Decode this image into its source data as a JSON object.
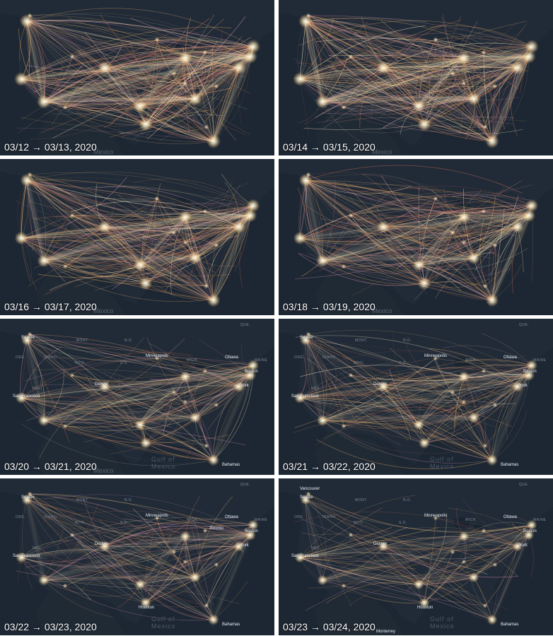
{
  "panels": [
    {
      "caption": "03/12 → 03/13, 2020",
      "density": 1.0,
      "labels": [
        {
          "text": "Mexico",
          "kind": "mex",
          "pos": "gulf-west"
        }
      ]
    },
    {
      "caption": "03/14 → 03/15, 2020",
      "density": 0.95,
      "labels": [
        {
          "text": "Mexico",
          "kind": "mex",
          "pos": "gulf-west"
        }
      ]
    },
    {
      "caption": "03/16 → 03/17, 2020",
      "density": 0.85,
      "labels": [
        {
          "text": "Mexico",
          "kind": "mex",
          "pos": "gulf-west"
        }
      ]
    },
    {
      "caption": "03/18 → 03/19, 2020",
      "density": 0.8,
      "labels": [
        {
          "text": "Mexico",
          "kind": "mex",
          "pos": "gulf-west"
        }
      ]
    },
    {
      "caption": "03/20 → 03/21, 2020",
      "density": 0.55,
      "labels": [
        {
          "text": "Seattle",
          "kind": "city",
          "pos": "seattle"
        },
        {
          "text": "Minneapolis",
          "kind": "city",
          "pos": "minneapolis"
        },
        {
          "text": "Ottawa",
          "kind": "city",
          "pos": "ottawa"
        },
        {
          "text": "Boston",
          "kind": "city",
          "pos": "boston"
        },
        {
          "text": "Denver",
          "kind": "city",
          "pos": "denver"
        },
        {
          "text": "York",
          "kind": "city",
          "pos": "newyork"
        },
        {
          "text": "San Francisco",
          "kind": "city",
          "pos": "sanfrancisco"
        },
        {
          "text": "Bahamas",
          "kind": "city",
          "pos": "bahamas"
        },
        {
          "text": "QUE.",
          "kind": "state",
          "pos": "que"
        },
        {
          "text": "MONT.",
          "kind": "state",
          "pos": "mont"
        },
        {
          "text": "N.D.",
          "kind": "state",
          "pos": "nd"
        },
        {
          "text": "MAINE",
          "kind": "state",
          "pos": "maine"
        },
        {
          "text": "ORE.",
          "kind": "state",
          "pos": "ore"
        },
        {
          "text": "IDAHO",
          "kind": "state",
          "pos": "idaho"
        },
        {
          "text": "WYO.",
          "kind": "state",
          "pos": "wyo"
        },
        {
          "text": "S.D.",
          "kind": "state",
          "pos": "sd"
        },
        {
          "text": "MICH.",
          "kind": "state",
          "pos": "mich"
        },
        {
          "text": "NEV.",
          "kind": "state",
          "pos": "nev"
        },
        {
          "text": "Gulf of",
          "kind": "water",
          "pos": "gulf1"
        },
        {
          "text": "Mexico",
          "kind": "water",
          "pos": "gulf2"
        },
        {
          "text": "Mexico",
          "kind": "mex",
          "pos": "gulf-west"
        }
      ]
    },
    {
      "caption": "03/21 → 03/22, 2020",
      "density": 0.5,
      "labels": [
        {
          "text": "Seattle",
          "kind": "city",
          "pos": "seattle"
        },
        {
          "text": "Minneapolis",
          "kind": "city",
          "pos": "minneapolis"
        },
        {
          "text": "Ottawa",
          "kind": "city",
          "pos": "ottawa"
        },
        {
          "text": "Boston",
          "kind": "city",
          "pos": "boston"
        },
        {
          "text": "Denver",
          "kind": "city",
          "pos": "denver"
        },
        {
          "text": "York",
          "kind": "city",
          "pos": "newyork"
        },
        {
          "text": "San Francisco",
          "kind": "city",
          "pos": "sanfrancisco"
        },
        {
          "text": "Bahamas",
          "kind": "city",
          "pos": "bahamas"
        },
        {
          "text": "QUE.",
          "kind": "state",
          "pos": "que"
        },
        {
          "text": "MONT.",
          "kind": "state",
          "pos": "mont"
        },
        {
          "text": "N.D.",
          "kind": "state",
          "pos": "nd"
        },
        {
          "text": "MAINE",
          "kind": "state",
          "pos": "maine"
        },
        {
          "text": "ORE.",
          "kind": "state",
          "pos": "ore"
        },
        {
          "text": "IDAHO",
          "kind": "state",
          "pos": "idaho"
        },
        {
          "text": "WYO.",
          "kind": "state",
          "pos": "wyo"
        },
        {
          "text": "S.D.",
          "kind": "state",
          "pos": "sd"
        },
        {
          "text": "MICH.",
          "kind": "state",
          "pos": "mich"
        },
        {
          "text": "NEV.",
          "kind": "state",
          "pos": "nev"
        },
        {
          "text": "Gulf of",
          "kind": "water",
          "pos": "gulf1"
        },
        {
          "text": "Mexico",
          "kind": "water",
          "pos": "gulf2"
        }
      ]
    },
    {
      "caption": "03/22 → 03/23, 2020",
      "density": 0.45,
      "labels": [
        {
          "text": "Seattle",
          "kind": "city",
          "pos": "seattle"
        },
        {
          "text": "Minneapolis",
          "kind": "city",
          "pos": "minneapolis"
        },
        {
          "text": "Ottawa",
          "kind": "city",
          "pos": "ottawa"
        },
        {
          "text": "Boston",
          "kind": "city",
          "pos": "boston"
        },
        {
          "text": "Toronto",
          "kind": "city",
          "pos": "toronto"
        },
        {
          "text": "Denver",
          "kind": "city",
          "pos": "denver"
        },
        {
          "text": "York",
          "kind": "city",
          "pos": "newyork"
        },
        {
          "text": "San Francisco",
          "kind": "city",
          "pos": "sanfrancisco"
        },
        {
          "text": "Houston",
          "kind": "city",
          "pos": "houston"
        },
        {
          "text": "Bahamas",
          "kind": "city",
          "pos": "bahamas"
        },
        {
          "text": "QUE.",
          "kind": "state",
          "pos": "que"
        },
        {
          "text": "MONT.",
          "kind": "state",
          "pos": "mont"
        },
        {
          "text": "N.D.",
          "kind": "state",
          "pos": "nd"
        },
        {
          "text": "MAINE",
          "kind": "state",
          "pos": "maine"
        },
        {
          "text": "ORE.",
          "kind": "state",
          "pos": "ore"
        },
        {
          "text": "IDAHO",
          "kind": "state",
          "pos": "idaho"
        },
        {
          "text": "WYO.",
          "kind": "state",
          "pos": "wyo"
        },
        {
          "text": "S.D.",
          "kind": "state",
          "pos": "sd"
        },
        {
          "text": "MICH.",
          "kind": "state",
          "pos": "mich"
        },
        {
          "text": "NEV.",
          "kind": "state",
          "pos": "nev"
        },
        {
          "text": "Gulf of",
          "kind": "water",
          "pos": "gulf1"
        },
        {
          "text": "Mexico",
          "kind": "water",
          "pos": "gulf2"
        }
      ]
    },
    {
      "caption": "03/23 → 03/24, 2020",
      "density": 0.35,
      "labels": [
        {
          "text": "Vancouver",
          "kind": "city",
          "pos": "vancouver"
        },
        {
          "text": "Seattle",
          "kind": "city",
          "pos": "seattle"
        },
        {
          "text": "Minneapolis",
          "kind": "city",
          "pos": "minneapolis"
        },
        {
          "text": "Ottawa",
          "kind": "city",
          "pos": "ottawa"
        },
        {
          "text": "Boston",
          "kind": "city",
          "pos": "boston"
        },
        {
          "text": "Denver",
          "kind": "city",
          "pos": "denver"
        },
        {
          "text": "York",
          "kind": "city",
          "pos": "newyork"
        },
        {
          "text": "San Francisco",
          "kind": "city",
          "pos": "sanfrancisco"
        },
        {
          "text": "Houston",
          "kind": "city",
          "pos": "houston"
        },
        {
          "text": "Monterrey",
          "kind": "city",
          "pos": "monterrey"
        },
        {
          "text": "Bahamas",
          "kind": "city",
          "pos": "bahamas"
        },
        {
          "text": "QUE.",
          "kind": "state",
          "pos": "que"
        },
        {
          "text": "MONT.",
          "kind": "state",
          "pos": "mont"
        },
        {
          "text": "N.D.",
          "kind": "state",
          "pos": "nd"
        },
        {
          "text": "MAINE",
          "kind": "state",
          "pos": "maine"
        },
        {
          "text": "ORE.",
          "kind": "state",
          "pos": "ore"
        },
        {
          "text": "IDAHO",
          "kind": "state",
          "pos": "idaho"
        },
        {
          "text": "WYO.",
          "kind": "state",
          "pos": "wyo"
        },
        {
          "text": "S.D.",
          "kind": "state",
          "pos": "sd"
        },
        {
          "text": "MICH.",
          "kind": "state",
          "pos": "mich"
        },
        {
          "text": "NEV.",
          "kind": "state",
          "pos": "nev"
        },
        {
          "text": "Gulf of",
          "kind": "water",
          "pos": "gulf1"
        },
        {
          "text": "Mexico",
          "kind": "water",
          "pos": "gulf2"
        }
      ]
    }
  ],
  "colors": {
    "background": "#1d2733",
    "land": "#222c38",
    "flow_bright": "#fff1c4",
    "flow_mid": "#f2b46a",
    "flow_dim": "#c86a52",
    "flow_pink": "#e8a0b8"
  }
}
